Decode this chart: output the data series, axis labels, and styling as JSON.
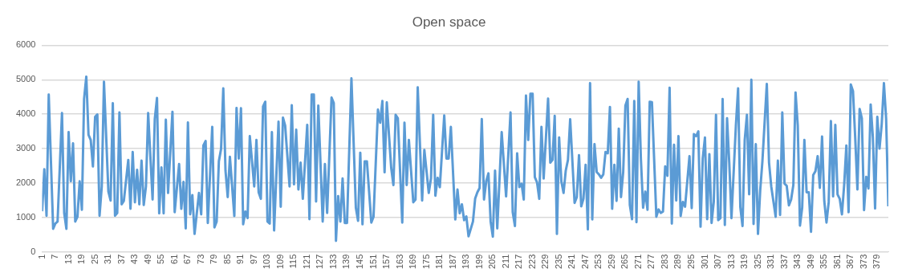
{
  "chart_data": {
    "type": "line",
    "title": "Open space",
    "marker": "none",
    "grid": "y",
    "xlim": [
      1,
      384
    ],
    "xticks": [
      1,
      7,
      13,
      19,
      25,
      31,
      37,
      43,
      49,
      55,
      61,
      67,
      73,
      79,
      85,
      91,
      97,
      103,
      109,
      115,
      121,
      127,
      133,
      139,
      145,
      151,
      157,
      163,
      169,
      175,
      181,
      187,
      193,
      199,
      205,
      211,
      217,
      223,
      229,
      235,
      241,
      247,
      253,
      259,
      265,
      271,
      277,
      283,
      289,
      295,
      301,
      307,
      313,
      319,
      325,
      331,
      337,
      343,
      349,
      355,
      361,
      367,
      373,
      379
    ],
    "ylim": [
      0,
      6000
    ],
    "yticks": [
      0,
      1000,
      2000,
      3000,
      4000,
      5000,
      6000
    ],
    "series": [
      {
        "color": "#5b9bd5",
        "x": [
          1,
          2,
          3,
          4,
          6,
          7,
          8,
          10,
          11,
          12,
          13,
          14,
          15,
          16,
          17,
          18,
          19,
          20,
          21,
          22,
          23,
          24,
          25,
          26,
          27,
          28,
          29,
          31,
          32,
          33,
          34,
          35,
          36,
          37,
          38,
          40,
          41,
          42,
          43,
          44,
          45,
          46,
          47,
          48,
          49,
          51,
          52,
          53,
          54,
          55,
          56,
          57,
          58,
          60,
          61,
          63,
          64,
          65,
          66,
          67,
          68,
          69,
          70,
          72,
          73,
          74,
          75,
          76,
          78,
          79,
          80,
          81,
          82,
          83,
          84,
          85,
          86,
          88,
          89,
          90,
          91,
          92,
          93,
          94,
          95,
          97,
          98,
          99,
          100,
          101,
          102,
          103,
          104,
          105,
          106,
          108,
          109,
          110,
          111,
          113,
          114,
          115,
          116,
          117,
          118,
          119,
          121,
          122,
          123,
          124,
          125,
          126,
          128,
          129,
          130,
          132,
          133,
          134,
          135,
          136,
          137,
          138,
          139,
          141,
          143,
          144,
          145,
          146,
          147,
          148,
          150,
          151,
          153,
          154,
          155,
          156,
          157,
          159,
          160,
          161,
          162,
          164,
          165,
          166,
          167,
          169,
          170,
          171,
          173,
          174,
          176,
          177,
          178,
          179,
          180,
          181,
          183,
          184,
          185,
          186,
          188,
          189,
          190,
          191,
          192,
          193,
          194,
          196,
          197,
          198,
          199,
          200,
          201,
          202,
          203,
          204,
          205,
          206,
          207,
          209,
          211,
          213,
          214,
          215,
          216,
          217,
          218,
          219,
          220,
          221,
          222,
          223,
          224,
          225,
          226,
          227,
          228,
          230,
          231,
          232,
          233,
          234,
          235,
          236,
          237,
          238,
          239,
          240,
          242,
          243,
          244,
          245,
          246,
          247,
          248,
          249,
          250,
          251,
          252,
          253,
          254,
          255,
          256,
          257,
          258,
          259,
          260,
          261,
          262,
          263,
          264,
          265,
          266,
          267,
          268,
          269,
          270,
          271,
          272,
          273,
          274,
          275,
          276,
          277,
          279,
          280,
          281,
          282,
          283,
          284,
          285,
          286,
          287,
          288,
          289,
          290,
          291,
          292,
          294,
          295,
          296,
          297,
          298,
          299,
          300,
          301,
          302,
          303,
          304,
          305,
          306,
          307,
          308,
          309,
          310,
          311,
          312,
          313,
          315,
          316,
          317,
          318,
          319,
          320,
          321,
          322,
          323,
          324,
          325,
          326,
          327,
          329,
          330,
          331,
          333,
          334,
          335,
          336,
          337,
          338,
          339,
          340,
          341,
          342,
          343,
          344,
          345,
          346,
          347,
          348,
          349,
          350,
          351,
          352,
          353,
          354,
          355,
          356,
          357,
          358,
          359,
          360,
          361,
          362,
          363,
          364,
          365,
          366,
          367,
          368,
          369,
          370,
          371,
          372,
          373,
          374,
          375,
          376,
          377,
          378,
          379,
          380,
          381,
          382,
          383,
          384
        ],
        "values": [
          1180,
          2400,
          1050,
          4570,
          670,
          820,
          880,
          4030,
          1130,
          670,
          3480,
          2050,
          3150,
          880,
          1020,
          2050,
          1220,
          4440,
          5090,
          3400,
          3250,
          2480,
          3920,
          3990,
          1050,
          1900,
          4940,
          1750,
          1490,
          4320,
          1050,
          1130,
          4050,
          1380,
          1480,
          2670,
          1250,
          2900,
          1440,
          2380,
          1380,
          2650,
          1360,
          1900,
          4030,
          1520,
          3860,
          4470,
          1120,
          2450,
          1120,
          3840,
          1710,
          4070,
          1150,
          2550,
          1250,
          2030,
          680,
          3760,
          1090,
          1650,
          520,
          1710,
          1090,
          3090,
          3220,
          840,
          3630,
          710,
          880,
          2630,
          2990,
          4750,
          2360,
          1590,
          2760,
          1040,
          4180,
          2710,
          4170,
          800,
          1170,
          980,
          3360,
          1900,
          3250,
          1730,
          1540,
          4220,
          4360,
          880,
          820,
          3480,
          620,
          3780,
          1310,
          3900,
          3670,
          1900,
          4260,
          1960,
          3550,
          1810,
          2590,
          1540,
          3690,
          950,
          4570,
          4570,
          1460,
          4250,
          880,
          2550,
          1130,
          4480,
          4320,
          320,
          1620,
          880,
          2130,
          840,
          840,
          5040,
          1280,
          900,
          2880,
          800,
          2630,
          2630,
          850,
          1020,
          4130,
          3750,
          4380,
          2310,
          4340,
          2440,
          1940,
          3980,
          3880,
          850,
          3750,
          1940,
          3250,
          1440,
          1520,
          4780,
          1490,
          2960,
          1710,
          2130,
          3980,
          1630,
          2150,
          1880,
          3960,
          2710,
          2710,
          3630,
          940,
          1810,
          1120,
          1380,
          920,
          1030,
          450,
          880,
          1550,
          1730,
          1850,
          3860,
          1520,
          2050,
          2280,
          880,
          440,
          2360,
          680,
          3480,
          1610,
          4050,
          1150,
          750,
          2860,
          1880,
          1980,
          1520,
          4540,
          3250,
          4590,
          4590,
          2170,
          2020,
          1540,
          3630,
          2130,
          4450,
          2590,
          2670,
          3950,
          520,
          3320,
          2050,
          1710,
          2360,
          2670,
          3850,
          1420,
          1590,
          2810,
          1320,
          1540,
          2530,
          650,
          4900,
          940,
          3130,
          2320,
          2250,
          2150,
          2250,
          2900,
          2860,
          4210,
          1250,
          2530,
          1480,
          3580,
          1590,
          2320,
          4250,
          4440,
          1360,
          950,
          4380,
          860,
          4940,
          2710,
          1280,
          1750,
          1220,
          4360,
          4350,
          1020,
          1230,
          1130,
          1170,
          2480,
          2210,
          4770,
          820,
          3110,
          1490,
          3360,
          1040,
          1450,
          1310,
          2780,
          1270,
          3420,
          3360,
          3500,
          730,
          2710,
          3320,
          950,
          2840,
          840,
          1460,
          3980,
          920,
          980,
          4440,
          780,
          3880,
          2590,
          980,
          3670,
          4750,
          1300,
          750,
          3250,
          3980,
          1670,
          5000,
          810,
          3130,
          520,
          1780,
          2630,
          4880,
          2590,
          1900,
          1020,
          2650,
          1070,
          4050,
          1980,
          1920,
          1350,
          1520,
          1940,
          4630,
          3670,
          760,
          1280,
          3250,
          1730,
          1730,
          580,
          2230,
          2340,
          2780,
          1860,
          3350,
          1480,
          850,
          1440,
          3800,
          1610,
          3690,
          1670,
          1540,
          1090,
          1940,
          3090,
          1150,
          4860,
          4670,
          3320,
          1810,
          4150,
          3880,
          1210,
          2180,
          1840,
          4280,
          3320,
          1260,
          3920,
          3000,
          3710,
          4900,
          3860,
          1320
        ]
      }
    ]
  }
}
